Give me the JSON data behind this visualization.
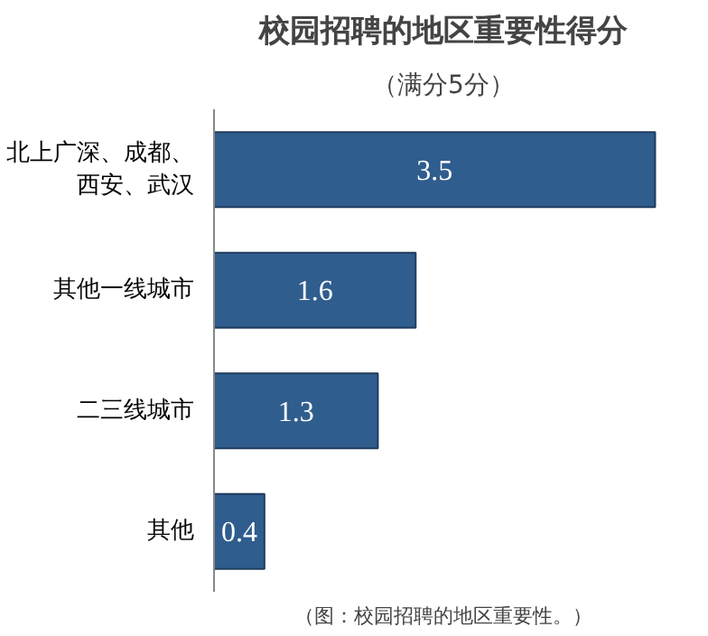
{
  "chart_data": {
    "type": "bar",
    "orientation": "horizontal",
    "title": "校园招聘的地区重要性得分",
    "subtitle": "（满分5分）",
    "categories": [
      "北上广深、成都、西安、武汉",
      "其他一线城市",
      "二三线城市",
      "其他"
    ],
    "values": [
      3.5,
      1.6,
      1.3,
      0.4
    ],
    "color": "#2f5d8e",
    "data_labels": true,
    "grid": false,
    "annotations": [
      "（图：校园招聘的地区重要性。）"
    ]
  }
}
